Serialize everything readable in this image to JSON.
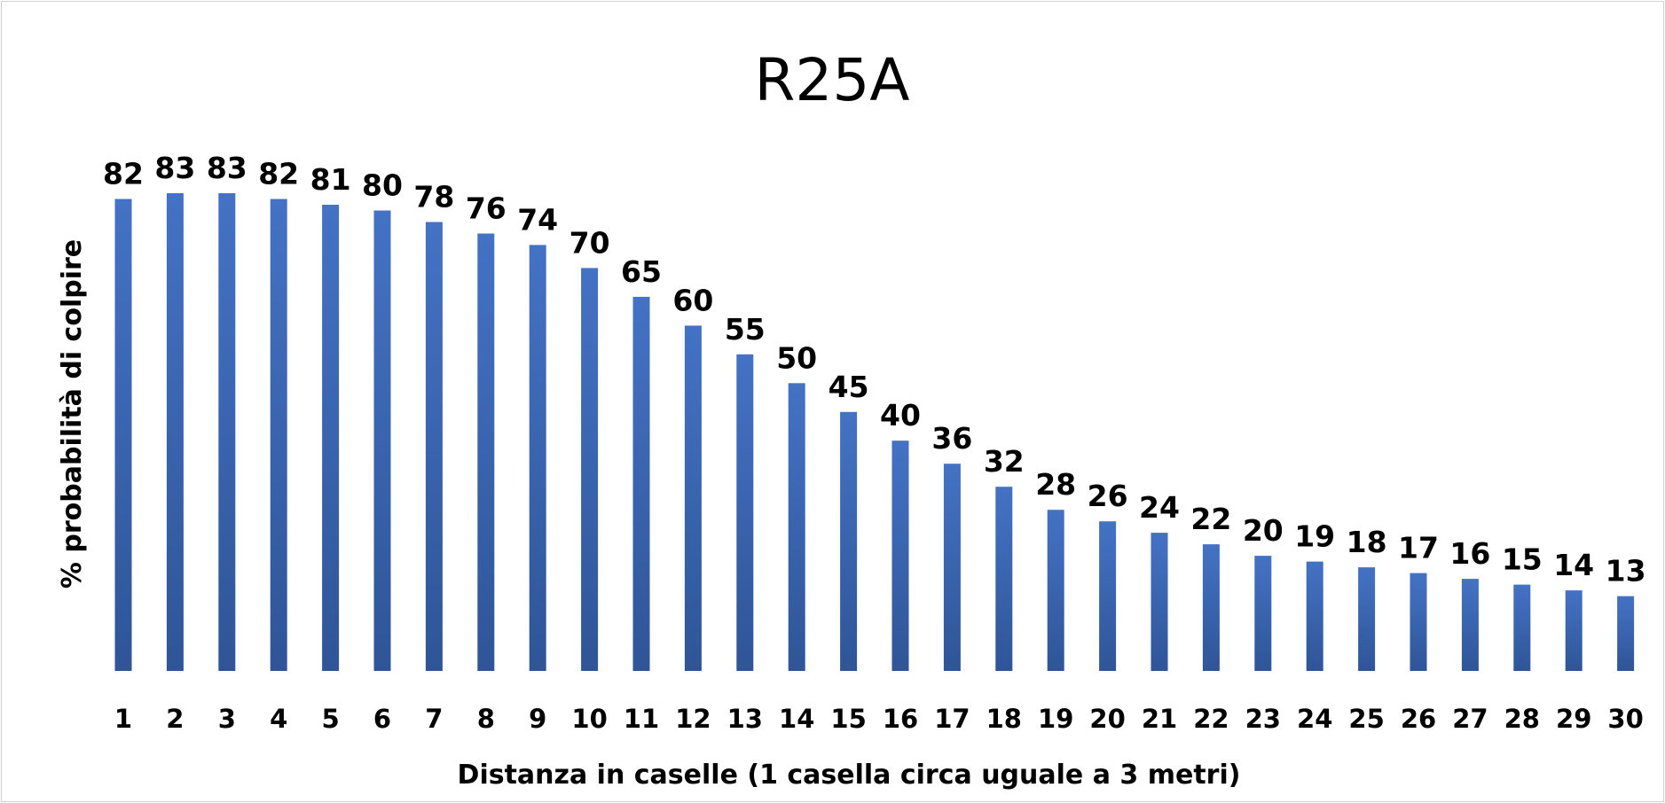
{
  "chart_data": {
    "type": "bar",
    "title": "R25A",
    "xlabel": "Distanza in caselle (1 casella circa uguale a 3 metri)",
    "ylabel": "% probabilità di colpire",
    "categories": [
      "1",
      "2",
      "3",
      "4",
      "5",
      "6",
      "7",
      "8",
      "9",
      "10",
      "11",
      "12",
      "13",
      "14",
      "15",
      "16",
      "17",
      "18",
      "19",
      "20",
      "21",
      "22",
      "23",
      "24",
      "25",
      "26",
      "27",
      "28",
      "29",
      "30"
    ],
    "values": [
      82,
      83,
      83,
      82,
      81,
      80,
      78,
      76,
      74,
      70,
      65,
      60,
      55,
      50,
      45,
      40,
      36,
      32,
      28,
      26,
      24,
      22,
      20,
      19,
      18,
      17,
      16,
      15,
      14,
      13
    ],
    "ylim": [
      0,
      83
    ],
    "grid": false,
    "legend": false,
    "bar_color": "#4472C4",
    "bar_color_dark": "#2F5597"
  }
}
